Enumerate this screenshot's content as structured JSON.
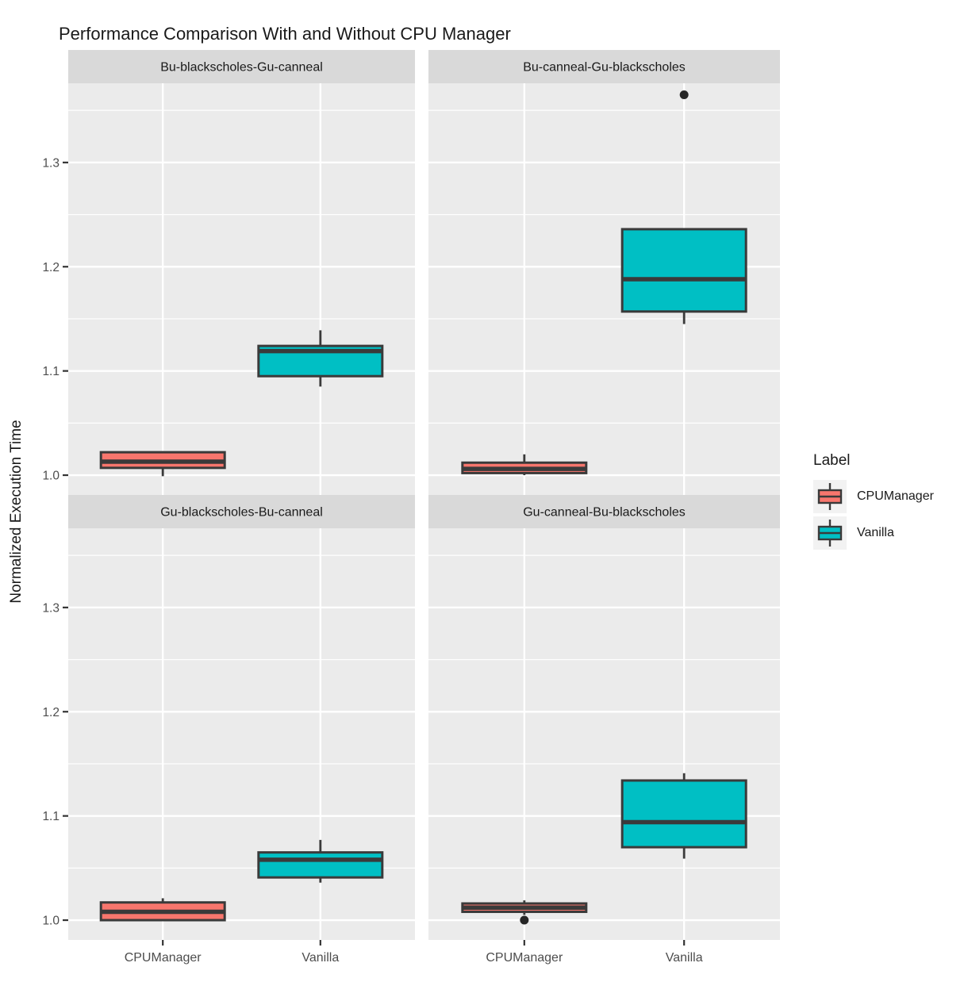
{
  "title": "Performance Comparison With and Without CPU Manager",
  "y_axis": {
    "label": "Normalized Execution Time"
  },
  "legend": {
    "title": "Label",
    "entries": [
      {
        "label": "CPUManager",
        "color": "#F8766D"
      },
      {
        "label": "Vanilla",
        "color": "#00BFC4"
      }
    ]
  },
  "colors": {
    "panel_background": "#EBEBEB",
    "strip_background": "#D9D9D9",
    "grid_line": "#FFFFFF",
    "box_stroke": "#3A3A3A",
    "axis_text": "#4D4D4D",
    "tick_mark": "#333333",
    "outlier": "#262626",
    "legend_key_background": "#F2F2F2"
  },
  "chart_data": {
    "type": "boxplot",
    "title": "Performance Comparison With and Without CPU Manager",
    "xlabel": "",
    "ylabel": "Normalized Execution Time",
    "ylim": [
      0.981,
      1.376
    ],
    "yticks": [
      1.0,
      1.1,
      1.2,
      1.3
    ],
    "yticks_minor": [
      1.05,
      1.15,
      1.25,
      1.35
    ],
    "grid": true,
    "legend_title": "Label",
    "legend_position": "right",
    "categories": [
      "CPUManager",
      "Vanilla"
    ],
    "series_colors": {
      "CPUManager": "#F8766D",
      "Vanilla": "#00BFC4"
    },
    "facets": [
      {
        "title": "Bu-blackscholes-Gu-canneal",
        "boxes": [
          {
            "group": "CPUManager",
            "min": 0.999,
            "q1": 1.007,
            "median": 1.013,
            "q3": 1.022,
            "max": 1.023,
            "outliers": []
          },
          {
            "group": "Vanilla",
            "min": 1.085,
            "q1": 1.095,
            "median": 1.119,
            "q3": 1.124,
            "max": 1.139,
            "outliers": []
          }
        ]
      },
      {
        "title": "Bu-canneal-Gu-blackscholes",
        "boxes": [
          {
            "group": "CPUManager",
            "min": 1.0,
            "q1": 1.002,
            "median": 1.006,
            "q3": 1.012,
            "max": 1.02,
            "outliers": []
          },
          {
            "group": "Vanilla",
            "min": 1.145,
            "q1": 1.157,
            "median": 1.188,
            "q3": 1.236,
            "max": 1.236,
            "outliers": [
              1.365
            ]
          }
        ]
      },
      {
        "title": "Gu-blackscholes-Bu-canneal",
        "boxes": [
          {
            "group": "CPUManager",
            "min": 1.0,
            "q1": 1.0,
            "median": 1.008,
            "q3": 1.017,
            "max": 1.021,
            "outliers": []
          },
          {
            "group": "Vanilla",
            "min": 1.036,
            "q1": 1.041,
            "median": 1.058,
            "q3": 1.065,
            "max": 1.077,
            "outliers": []
          }
        ]
      },
      {
        "title": "Gu-canneal-Bu-blackscholes",
        "boxes": [
          {
            "group": "CPUManager",
            "min": 1.005,
            "q1": 1.008,
            "median": 1.012,
            "q3": 1.016,
            "max": 1.019,
            "outliers": [
              1.0
            ]
          },
          {
            "group": "Vanilla",
            "min": 1.059,
            "q1": 1.07,
            "median": 1.094,
            "q3": 1.134,
            "max": 1.141,
            "outliers": []
          }
        ]
      }
    ]
  }
}
